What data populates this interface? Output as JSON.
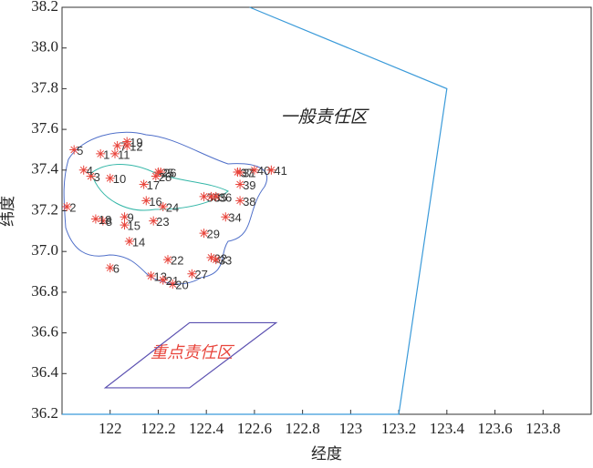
{
  "chart_data": {
    "type": "scatter",
    "x_label": "经度",
    "y_label": "纬度",
    "xlim": [
      121.8,
      124.0
    ],
    "ylim": [
      36.2,
      38.2
    ],
    "xticks": [
      122,
      122.2,
      122.4,
      122.6,
      122.8,
      123,
      123.2,
      123.4,
      123.6,
      123.8
    ],
    "yticks": [
      36.2,
      36.4,
      36.6,
      36.8,
      {
        "value": 37,
        "label": "37.0"
      },
      37.2,
      37.4,
      37.6,
      37.8,
      {
        "value": 38,
        "label": "38.0"
      },
      38.2
    ],
    "marker_color": "#e8453c",
    "labels": [
      "1",
      "2",
      "3",
      "4",
      "5",
      "6",
      "7",
      "8",
      "9",
      "10",
      "11",
      "12",
      "13",
      "14",
      "15",
      "16",
      "17",
      "18",
      "19",
      "20",
      "21",
      "22",
      "23",
      "24",
      "25",
      "26",
      "27",
      "28",
      "29",
      "30",
      "31",
      "32",
      "33",
      "34",
      "35",
      "36",
      "37",
      "38",
      "39",
      "40",
      "41"
    ],
    "x": [
      121.96,
      121.82,
      121.92,
      121.89,
      121.85,
      122.0,
      122.03,
      121.97,
      122.06,
      122.0,
      122.02,
      122.07,
      122.17,
      122.08,
      122.06,
      122.15,
      122.14,
      121.94,
      122.07,
      122.26,
      122.22,
      122.24,
      122.18,
      122.22,
      122.2,
      122.21,
      122.34,
      122.19,
      122.39,
      122.39,
      122.54,
      122.42,
      122.44,
      122.48,
      122.42,
      122.44,
      122.53,
      122.54,
      122.54,
      122.6,
      122.67
    ],
    "y": [
      37.48,
      37.22,
      37.37,
      37.4,
      37.5,
      36.92,
      37.52,
      37.15,
      37.17,
      37.36,
      37.48,
      37.52,
      36.88,
      37.05,
      37.13,
      37.25,
      37.33,
      37.16,
      37.54,
      36.84,
      36.86,
      36.96,
      37.15,
      37.22,
      37.39,
      37.39,
      36.89,
      37.37,
      37.09,
      37.27,
      37.39,
      36.97,
      36.96,
      37.17,
      37.27,
      37.27,
      37.39,
      37.25,
      37.33,
      37.4,
      37.4
    ],
    "regions": [
      {
        "name": "一般责任区",
        "color": "#3a9ad9",
        "lon": [
          122.58,
          123.4,
          123.2,
          121.8
        ],
        "lat": [
          38.2,
          37.8,
          36.2,
          36.2
        ]
      },
      {
        "name": "重点责任区",
        "color": "#5a4fb0",
        "lon": [
          121.98,
          122.33,
          122.69,
          122.33
        ],
        "lat": [
          36.33,
          36.33,
          36.65,
          36.65
        ]
      }
    ]
  }
}
